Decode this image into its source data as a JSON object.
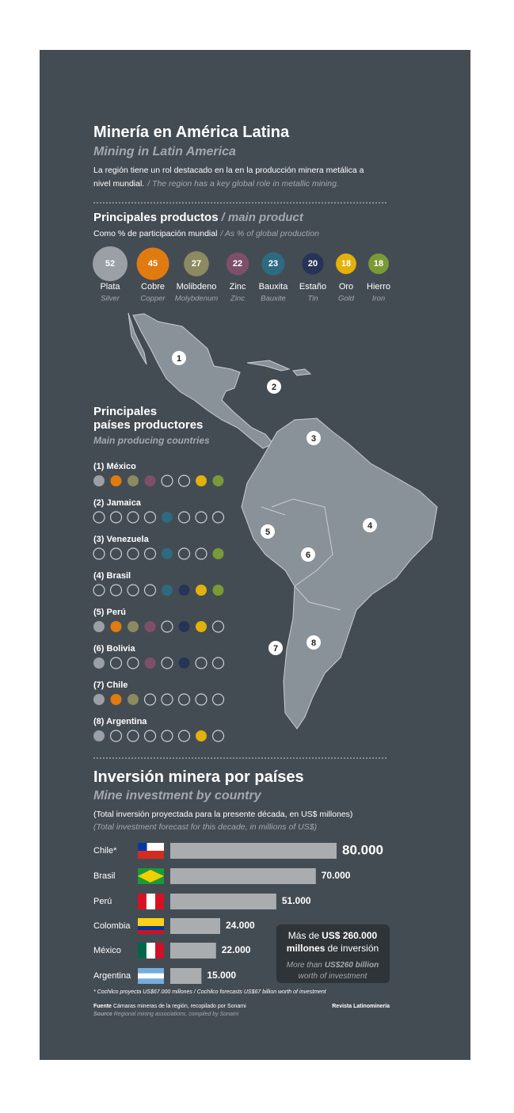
{
  "header": {
    "title": "Minería en América Latina",
    "title_en": "Mining in Latin America",
    "intro": "La región tiene un rol destacado en la en la producción minera metálica a",
    "intro2": "nivel mundial.",
    "intro_en": "/ The region has a key global role in metallic mining."
  },
  "products": {
    "title": "Principales productos",
    "title_en": "/ main product",
    "subtitle": "Como % de participación mundial",
    "subtitle_en": "/ As % of global production",
    "items": [
      {
        "name": "Plata",
        "name_en": "Silver",
        "value": 52,
        "color": "#9aa0a6"
      },
      {
        "name": "Cobre",
        "name_en": "Copper",
        "value": 45,
        "color": "#e07b10"
      },
      {
        "name": "Molibdeno",
        "name_en": "Molybdenum",
        "value": 27,
        "color": "#8b8a60"
      },
      {
        "name": "Zinc",
        "name_en": "Zinc",
        "value": 22,
        "color": "#7d4f6b"
      },
      {
        "name": "Bauxita",
        "name_en": "Bauxite",
        "value": 23,
        "color": "#2e6a80"
      },
      {
        "name": "Estaño",
        "name_en": "Tin",
        "value": 20,
        "color": "#273457"
      },
      {
        "name": "Oro",
        "name_en": "Gold",
        "value": 18,
        "color": "#e2b10a"
      },
      {
        "name": "Hierro",
        "name_en": "Iron",
        "value": 18,
        "color": "#7a9a36"
      }
    ]
  },
  "countries": {
    "title": "Principales",
    "title2": "países productores",
    "title_en": "Main producing countries",
    "items": [
      {
        "label": "(1) México",
        "marker": "1",
        "products": [
          true,
          true,
          true,
          true,
          false,
          false,
          true,
          true
        ]
      },
      {
        "label": "(2) Jamaica",
        "marker": "2",
        "products": [
          false,
          false,
          false,
          false,
          true,
          false,
          false,
          false
        ]
      },
      {
        "label": "(3) Venezuela",
        "marker": "3",
        "products": [
          false,
          false,
          false,
          false,
          true,
          false,
          false,
          true
        ]
      },
      {
        "label": "(4) Brasil",
        "marker": "4",
        "products": [
          false,
          false,
          false,
          false,
          true,
          true,
          true,
          true
        ]
      },
      {
        "label": "(5) Perú",
        "marker": "5",
        "products": [
          true,
          true,
          true,
          true,
          false,
          true,
          true,
          false
        ]
      },
      {
        "label": "(6) Bolivia",
        "marker": "6",
        "products": [
          true,
          false,
          false,
          true,
          false,
          true,
          false,
          false
        ]
      },
      {
        "label": "(7) Chile",
        "marker": "7",
        "products": [
          true,
          true,
          true,
          false,
          false,
          false,
          false,
          false
        ]
      },
      {
        "label": "(8) Argentina",
        "marker": "8",
        "products": [
          true,
          false,
          false,
          false,
          false,
          false,
          true,
          false
        ]
      }
    ]
  },
  "chart_data": {
    "type": "bar",
    "title": "Inversión minera por países",
    "subtitle": "Mine investment by country",
    "note": "(Total inversión proyectada para la presente década, en US$ millones)",
    "note_en": "(Total investment forecast for this decade, in millions of US$)",
    "categories": [
      "Chile*",
      "Brasil",
      "Perú",
      "Colombia",
      "México",
      "Argentina"
    ],
    "values": [
      80000,
      70000,
      51000,
      24000,
      22000,
      15000
    ],
    "value_labels": [
      "80.000",
      "70.000",
      "51.000",
      "24.000",
      "22.000",
      "15.000"
    ],
    "color": "#a9adb0"
  },
  "callout": {
    "line1a": "Más de",
    "line1b": "US$ 260.000",
    "line2a": "millones",
    "line2b": "de inversión",
    "line3a": "More than",
    "line3b": "US$260 billion",
    "line4": "worth of investment"
  },
  "footer": {
    "footnote": "* Cochilco proyecta US$67.000 millones / Cochilco forecasts US$67 billion worth of investment",
    "source_label": "Fuente",
    "source": "Cámaras mineras de la región, recopilado por Sonami",
    "source_label_en": "Source",
    "source_en": "Regional mining associations, compiled by Sonami",
    "credit": "Revista Latinominería"
  }
}
